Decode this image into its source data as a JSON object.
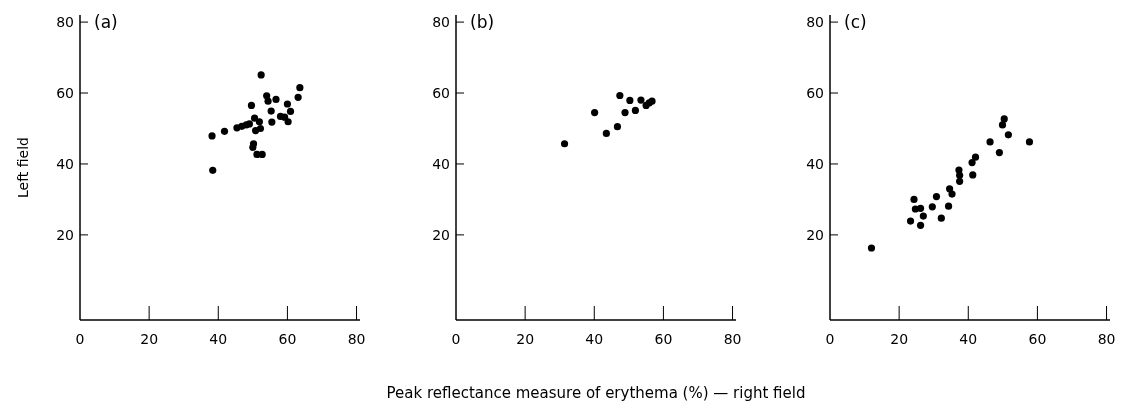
{
  "chart_data": [
    {
      "type": "scatter",
      "title": "(a)",
      "ylabel": "Left field",
      "xlim": [
        0,
        81
      ],
      "ylim": [
        -4,
        82
      ],
      "xticks": [
        0,
        20,
        40,
        60,
        80
      ],
      "yticks": [
        20,
        40,
        60,
        80
      ],
      "grid": false,
      "marker": "circle",
      "series": [
        {
          "color": "#000000",
          "x": [
            38.2,
            38.4,
            41.8,
            45.4,
            46.8,
            48.1,
            49,
            49.6,
            50.2,
            50,
            50.5,
            50.8,
            51.2,
            51.9,
            52.7,
            52.2,
            52.4,
            54,
            54.4,
            55.3,
            55.5,
            56.7,
            58,
            59.2,
            60,
            60.2,
            60.9,
            63.1,
            63.6
          ],
          "values": [
            47.9,
            38.2,
            49.2,
            50.2,
            50.6,
            51,
            51.3,
            56.5,
            45.7,
            44.7,
            52.9,
            49.4,
            42.7,
            51.9,
            42.7,
            50,
            65.1,
            59.2,
            57.7,
            54.9,
            51.8,
            58.2,
            53.4,
            53.2,
            56.9,
            51.9,
            54.8,
            58.8,
            61.5
          ]
        }
      ]
    },
    {
      "type": "scatter",
      "title": "(b)",
      "xlabel": "Peak reflectance measure of erythema (%) — right field",
      "xlim": [
        0,
        81
      ],
      "ylim": [
        -4,
        82
      ],
      "xticks": [
        0,
        20,
        40,
        60,
        80
      ],
      "yticks": [
        20,
        40,
        60,
        80
      ],
      "grid": false,
      "marker": "circle",
      "series": [
        {
          "color": "#000000",
          "x": [
            31.4,
            40.1,
            43.5,
            46.7,
            47.4,
            48.9,
            50.3,
            51.9,
            53.5,
            55,
            55.9,
            56.7
          ],
          "values": [
            45.7,
            54.5,
            48.6,
            50.5,
            59.3,
            54.5,
            57.9,
            55.1,
            58,
            56.5,
            57.2,
            57.7
          ]
        }
      ]
    },
    {
      "type": "scatter",
      "title": "(c)",
      "xlim": [
        0,
        81
      ],
      "ylim": [
        -4,
        82
      ],
      "xticks": [
        0,
        20,
        40,
        60,
        80
      ],
      "yticks": [
        20,
        40,
        60,
        80
      ],
      "grid": false,
      "marker": "circle",
      "series": [
        {
          "color": "#000000",
          "x": [
            12,
            23.3,
            24.3,
            24.7,
            26.2,
            26.2,
            27,
            29.6,
            30.8,
            32.2,
            34.3,
            34.6,
            35.3,
            37.3,
            37.5,
            37.5,
            41.3,
            41.1,
            42.1,
            46.3,
            49,
            49.9,
            50.4,
            51.6,
            57.7
          ],
          "values": [
            16.3,
            23.9,
            30,
            27.3,
            27.5,
            22.7,
            25.3,
            27.9,
            30.8,
            24.7,
            28.1,
            33,
            31.5,
            38.3,
            36.8,
            35.1,
            36.9,
            40.4,
            41.9,
            46.2,
            43.2,
            51,
            52.7,
            48.2,
            46.2
          ]
        }
      ]
    }
  ]
}
